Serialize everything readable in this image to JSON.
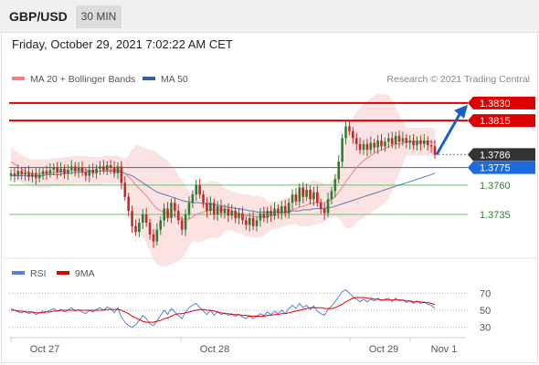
{
  "header": {
    "symbol": "GBP/USD",
    "timeframe": "30 MIN",
    "datetime": "Friday, October 29, 2021 7:02:22 AM CET"
  },
  "legend": {
    "ma20": "MA 20 + Bollinger Bands",
    "ma50": "MA 50",
    "ma20_color": "#f08080",
    "ma50_color": "#3a5fa0",
    "credit": "Research © 2021 Trading Central"
  },
  "rsi_legend": {
    "rsi": "RSI",
    "ma9": "9MA",
    "rsi_color": "#5b7fd6",
    "ma9_color": "#e00000"
  },
  "colors": {
    "bull": "#2e7d32",
    "bear": "#c62828",
    "resistance": "#dd0000",
    "support": "#6cbf6c",
    "current_bg": "#333333",
    "pivot_bg": "#1e6be0",
    "band_fill": "#fbd9d9",
    "arrow": "#1a5fc8"
  },
  "chart_data": [
    {
      "type": "candlestick",
      "x_labels": [
        "Oct 27",
        "Oct 28",
        "Oct 29",
        "Nov 1"
      ],
      "ylim": [
        1.37,
        1.384
      ],
      "levels": [
        {
          "label": "1.3830",
          "value": 1.383,
          "kind": "resistance"
        },
        {
          "label": "1.3815",
          "value": 1.3815,
          "kind": "resistance"
        },
        {
          "label": "1.3786",
          "value": 1.3786,
          "kind": "current"
        },
        {
          "label": "1.3775",
          "value": 1.3775,
          "kind": "pivot"
        },
        {
          "label": "1.3760",
          "value": 1.376,
          "kind": "support"
        },
        {
          "label": "1.3735",
          "value": 1.3735,
          "kind": "support"
        }
      ],
      "closes": [
        1.377,
        1.3768,
        1.3772,
        1.3769,
        1.3771,
        1.3767,
        1.377,
        1.3766,
        1.3769,
        1.3772,
        1.377,
        1.3773,
        1.3775,
        1.3771,
        1.3774,
        1.377,
        1.3773,
        1.3776,
        1.3772,
        1.3775,
        1.3771,
        1.3768,
        1.3773,
        1.377,
        1.3774,
        1.3776,
        1.3773,
        1.3777,
        1.3775,
        1.377,
        1.3776,
        1.3762,
        1.375,
        1.3738,
        1.3725,
        1.372,
        1.3728,
        1.3735,
        1.3728,
        1.3718,
        1.3712,
        1.3722,
        1.373,
        1.374,
        1.3732,
        1.3745,
        1.3738,
        1.373,
        1.3722,
        1.3735,
        1.3745,
        1.3752,
        1.376,
        1.3752,
        1.3745,
        1.3738,
        1.3745,
        1.3735,
        1.3742,
        1.3736,
        1.374,
        1.3734,
        1.3738,
        1.3732,
        1.3736,
        1.373,
        1.3726,
        1.3732,
        1.3725,
        1.373,
        1.3736,
        1.3732,
        1.3738,
        1.3734,
        1.374,
        1.3736,
        1.3742,
        1.3736,
        1.3745,
        1.3752,
        1.3746,
        1.3758,
        1.375,
        1.3756,
        1.3748,
        1.3754,
        1.3745,
        1.374,
        1.3736,
        1.3748,
        1.3755,
        1.3765,
        1.378,
        1.38,
        1.381,
        1.3806,
        1.38,
        1.3795,
        1.379,
        1.3795,
        1.379,
        1.3796,
        1.3792,
        1.3798,
        1.3793,
        1.3797,
        1.38,
        1.3795,
        1.3802,
        1.3797,
        1.38,
        1.3796,
        1.3798,
        1.3794,
        1.3798,
        1.3795,
        1.3798,
        1.3794,
        1.3793,
        1.3786
      ],
      "ma20": [
        1.378,
        1.3778,
        1.3776,
        1.3774,
        1.3772,
        1.3771,
        1.377,
        1.377,
        1.377,
        1.377,
        1.377,
        1.377,
        1.3771,
        1.3771,
        1.3771,
        1.3772,
        1.3772,
        1.3772,
        1.3773,
        1.3773,
        1.3773,
        1.3773,
        1.3772,
        1.3772,
        1.3772,
        1.3772,
        1.3773,
        1.3773,
        1.3773,
        1.3773,
        1.3773,
        1.3772,
        1.377,
        1.3767,
        1.3764,
        1.376,
        1.3757,
        1.3754,
        1.3751,
        1.3747,
        1.3743,
        1.374,
        1.3738,
        1.3737,
        1.3736,
        1.3735,
        1.3734,
        1.3732,
        1.3731,
        1.3731,
        1.3731,
        1.3733,
        1.3735,
        1.3736,
        1.3737,
        1.3738,
        1.3739,
        1.3739,
        1.3739,
        1.3739,
        1.3739,
        1.3739,
        1.3738,
        1.3737,
        1.3736,
        1.3735,
        1.3734,
        1.3734,
        1.3733,
        1.3733,
        1.3733,
        1.3733,
        1.3733,
        1.3734,
        1.3734,
        1.3735,
        1.3736,
        1.3737,
        1.3738,
        1.3739,
        1.374,
        1.3741,
        1.3742,
        1.3743,
        1.3744,
        1.3745,
        1.3745,
        1.3745,
        1.3745,
        1.3746,
        1.3748,
        1.375,
        1.3754,
        1.3758,
        1.3763,
        1.3767,
        1.3771,
        1.3775,
        1.3778,
        1.3781,
        1.3783,
        1.3785,
        1.3787,
        1.3789,
        1.379,
        1.3791,
        1.3793,
        1.3794,
        1.3795,
        1.3795,
        1.3796,
        1.3797,
        1.3797,
        1.3797,
        1.3797,
        1.3797,
        1.3797,
        1.3797,
        1.3797,
        1.3796
      ],
      "ma50": [
        1.3768,
        1.3768,
        1.3768,
        1.3768,
        1.3768,
        1.3768,
        1.3768,
        1.3768,
        1.3768,
        1.3768,
        1.3769,
        1.3769,
        1.3769,
        1.3769,
        1.3769,
        1.377,
        1.377,
        1.377,
        1.3771,
        1.3771,
        1.3771,
        1.3771,
        1.3772,
        1.3772,
        1.3772,
        1.3772,
        1.3772,
        1.3772,
        1.3772,
        1.3772,
        1.3772,
        1.3771,
        1.377,
        1.3769,
        1.3768,
        1.3766,
        1.3764,
        1.3762,
        1.376,
        1.3758,
        1.3756,
        1.3754,
        1.3753,
        1.3752,
        1.3751,
        1.375,
        1.3749,
        1.3748,
        1.3747,
        1.3746,
        1.3746,
        1.3745,
        1.3745,
        1.3745,
        1.3744,
        1.3744,
        1.3744,
        1.3743,
        1.3743,
        1.3742,
        1.3742,
        1.3741,
        1.3741,
        1.374,
        1.374,
        1.3739,
        1.3739,
        1.3738,
        1.3738,
        1.3737,
        1.3737,
        1.3737,
        1.3737,
        1.3737,
        1.3737,
        1.3737,
        1.3737,
        1.3737,
        1.3737,
        1.3738,
        1.3738,
        1.3738,
        1.3739,
        1.3739,
        1.3739,
        1.374,
        1.374,
        1.374,
        1.374,
        1.3741,
        1.3741,
        1.3742,
        1.3743,
        1.3744,
        1.3745,
        1.3746,
        1.3747,
        1.3748,
        1.3749,
        1.375,
        1.3751,
        1.3752,
        1.3753,
        1.3754,
        1.3755,
        1.3756,
        1.3757,
        1.3758,
        1.3759,
        1.376,
        1.3761,
        1.3762,
        1.3763,
        1.3764,
        1.3765,
        1.3766,
        1.3767,
        1.3768,
        1.3769,
        1.377
      ]
    },
    {
      "type": "line",
      "title": "RSI",
      "ylim": [
        20,
        80
      ],
      "y_ticks": [
        70,
        50,
        30
      ],
      "series": [
        {
          "name": "RSI",
          "values": [
            52,
            50,
            48,
            47,
            49,
            46,
            48,
            45,
            47,
            49,
            48,
            50,
            52,
            49,
            51,
            48,
            50,
            53,
            49,
            51,
            48,
            46,
            50,
            48,
            51,
            53,
            50,
            54,
            52,
            47,
            53,
            42,
            36,
            32,
            30,
            33,
            38,
            44,
            40,
            34,
            32,
            38,
            44,
            50,
            45,
            52,
            48,
            44,
            40,
            48,
            53,
            56,
            58,
            53,
            49,
            45,
            50,
            44,
            48,
            45,
            47,
            44,
            46,
            43,
            45,
            42,
            40,
            44,
            40,
            43,
            46,
            44,
            48,
            45,
            49,
            46,
            50,
            46,
            52,
            56,
            52,
            58,
            53,
            56,
            51,
            55,
            49,
            46,
            44,
            51,
            55,
            60,
            66,
            72,
            74,
            70,
            66,
            63,
            60,
            63,
            60,
            63,
            61,
            64,
            61,
            63,
            64,
            60,
            64,
            61,
            62,
            59,
            61,
            58,
            61,
            58,
            60,
            57,
            56,
            52
          ]
        },
        {
          "name": "9MA",
          "values": [
            50,
            50,
            49,
            49,
            48,
            48,
            48,
            47,
            47,
            47,
            48,
            48,
            49,
            49,
            50,
            50,
            50,
            50,
            50,
            50,
            50,
            50,
            50,
            50,
            50,
            50,
            50,
            51,
            51,
            51,
            51,
            50,
            48,
            46,
            43,
            41,
            39,
            37,
            36,
            36,
            36,
            37,
            38,
            40,
            41,
            43,
            45,
            46,
            46,
            47,
            48,
            49,
            50,
            51,
            51,
            50,
            50,
            49,
            48,
            47,
            46,
            46,
            45,
            45,
            45,
            44,
            44,
            43,
            43,
            43,
            43,
            43,
            44,
            44,
            45,
            45,
            46,
            46,
            47,
            48,
            49,
            50,
            51,
            52,
            53,
            53,
            53,
            53,
            52,
            52,
            52,
            53,
            55,
            57,
            60,
            62,
            64,
            65,
            65,
            65,
            64,
            64,
            63,
            63,
            62,
            62,
            62,
            62,
            62,
            62,
            62,
            61,
            61,
            60,
            60,
            60,
            59,
            59,
            58,
            57
          ]
        }
      ]
    }
  ]
}
